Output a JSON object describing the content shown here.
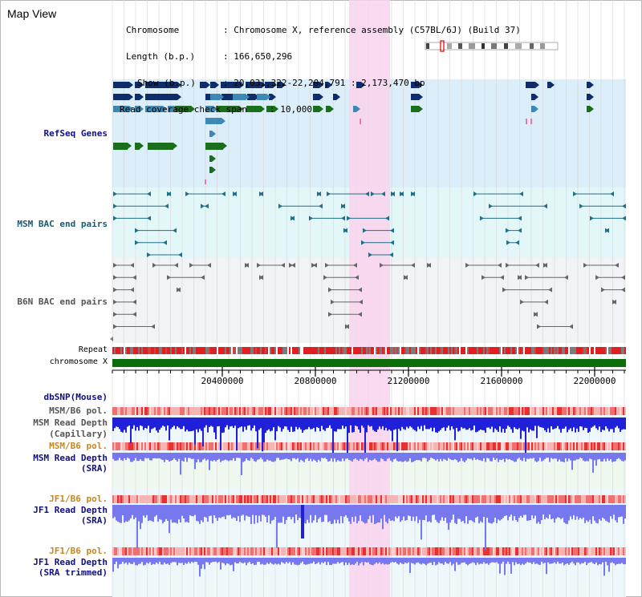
{
  "header": {
    "map_title": "Map View",
    "chromosome_key": "Chromosome",
    "chromosome_value": ": Chromosome X, reference assembly (C57BL/6J) (Build 37)",
    "length_key": "Length (b.p.)",
    "length_value": ": 166,650,296",
    "show_key": "Show (b.p.)",
    "show_value": ": 20,031,322-22,204,791 : 2,173,470 bp",
    "coverage_key": "Read coverage check span",
    "coverage_value": ": 10,000"
  },
  "tracks": {
    "refseq": "RefSeq Genes",
    "msm_bac": "MSM BAC end pairs",
    "b6n_bac": "B6N BAC end pairs",
    "repeat": "Repeat",
    "chrom": "chromosome X",
    "dbsnp": "dbSNP(Mouse)",
    "msm_pol_1": "MSM/B6 pol.",
    "msm_depth_cap_1": "MSM Read Depth",
    "msm_depth_cap_2": "(Capillary)",
    "msm_pol_2": "MSM/B6 pol.",
    "msm_depth_sra_1": "MSM Read Depth",
    "msm_depth_sra_2": "(SRA)",
    "jf1_pol_1": "JF1/B6 pol.",
    "jf1_depth_sra_1": "JF1 Read Depth",
    "jf1_depth_sra_2": "(SRA)",
    "jf1_pol_2": "JF1/B6 pol.",
    "jf1_depth_trim_1": "JF1 Read Depth",
    "jf1_depth_trim_2": "(SRA trimmed)"
  },
  "axis": {
    "ticks": [
      "20400000",
      "20800000",
      "21200000",
      "21600000",
      "22000000"
    ]
  },
  "colors": {
    "refseq_bg": "#dbeef9",
    "msm_bg": "#e3f7f9",
    "b6n_bg": "#f2f3f7",
    "highlight": "#f9d3ec",
    "gene_navy": "#0f2d6b",
    "gene_blue": "#3d89b3",
    "gene_green": "#1b6e1b",
    "bac_teal": "#1f6f8b",
    "chrom_green": "#0b6e0b",
    "repeat_red": "#e02020",
    "depth_blue": "#2020d8",
    "depth_light": "#7777ee"
  }
}
